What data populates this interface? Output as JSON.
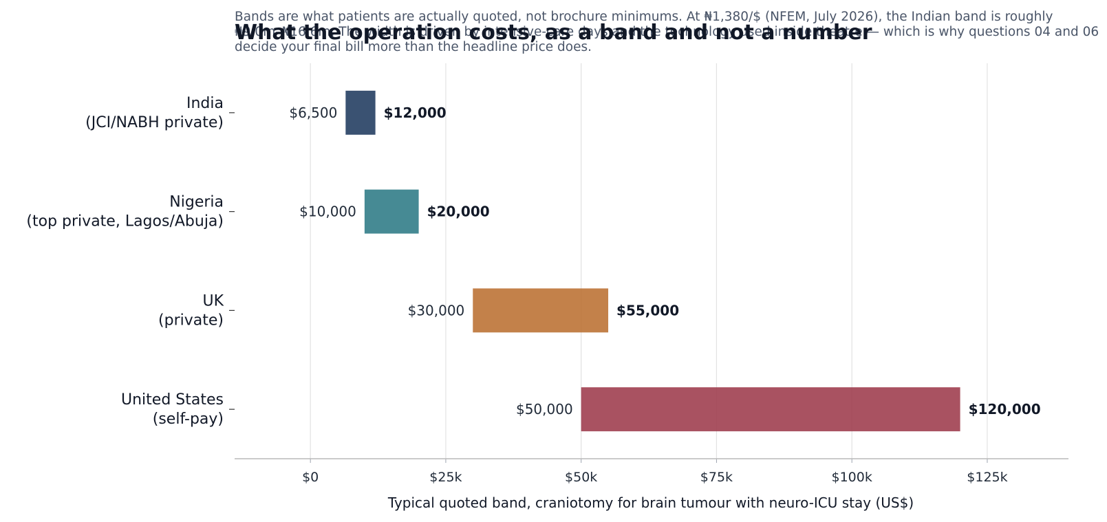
{
  "chart_data": {
    "type": "bar",
    "orientation": "horizontal",
    "style": "range band",
    "title": "What the operation costs, as a band and not a number",
    "subtitle": "Bands are what patients are actually quoted, not brochure minimums. At ₦1,380/$ (NFEM, July 2026), the Indian band is roughly ₦9.0m–₦16.6m. The width is driven by intensive-care days and the technology used inside theatre — which is why questions 04 and 06 decide your final bill more than the headline price does.",
    "xlabel": "Typical quoted band, craniotomy for brain tumour with neuro-ICU stay (US$)",
    "ylabel": "",
    "xlim": [
      -14000,
      140000
    ],
    "xticks": [
      0,
      25000,
      50000,
      75000,
      100000,
      125000
    ],
    "xtick_labels": [
      "$0",
      "$25k",
      "$50k",
      "$75k",
      "$100k",
      "$125k"
    ],
    "grid": "vertical",
    "categories": [
      [
        "India",
        "(JCI/NABH private)"
      ],
      [
        "Nigeria",
        "(top private, Lagos/Abuja)"
      ],
      [
        "UK",
        "(private)"
      ],
      [
        "United States",
        "(self-pay)"
      ]
    ],
    "low": [
      6500,
      10000,
      30000,
      50000
    ],
    "high": [
      12000,
      20000,
      55000,
      120000
    ],
    "low_labels": [
      "$6,500",
      "$10,000",
      "$30,000",
      "$50,000"
    ],
    "high_labels": [
      "$12,000",
      "$20,000",
      "$55,000",
      "$120,000"
    ],
    "colors": [
      "#1f3a5f",
      "#2c7a85",
      "#bb6f31",
      "#9d3a4b"
    ]
  }
}
